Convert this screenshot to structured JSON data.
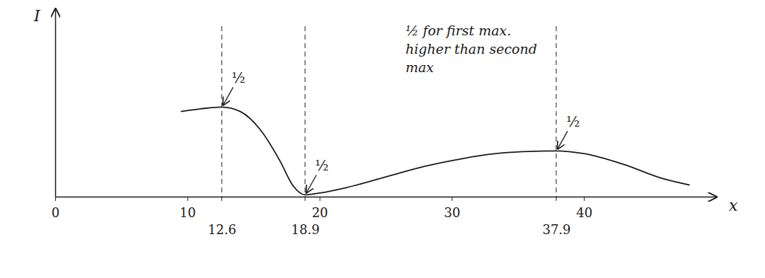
{
  "chart_data": {
    "type": "line",
    "x_label": "x",
    "y_label": "I",
    "x": [
      9.5,
      11,
      12.6,
      14,
      15.5,
      17,
      18,
      18.9,
      20,
      22,
      25,
      28,
      31,
      34,
      37.9,
      40,
      43,
      46,
      48
    ],
    "series": [
      {
        "color": "#1a1a1a",
        "line_style": "solid",
        "values": [
          0.95,
          0.98,
          1.0,
          0.95,
          0.75,
          0.4,
          0.12,
          0.02,
          0.04,
          0.1,
          0.22,
          0.34,
          0.43,
          0.49,
          0.51,
          0.48,
          0.36,
          0.2,
          0.13
        ]
      }
    ],
    "xlim": [
      0,
      50
    ],
    "ylim": [
      0,
      2.1
    ],
    "xticks": [
      0,
      10,
      20,
      30,
      40
    ],
    "yticks": [],
    "tick_labels": "x",
    "reference_lines": [
      12.6,
      18.9,
      37.9
    ],
    "annotations": [
      {
        "text": "½",
        "x": 12.6,
        "y": 1.0
      },
      {
        "text": "½",
        "x": 18.9,
        "y": 0.02
      },
      {
        "text": "½",
        "x": 37.9,
        "y": 0.51
      }
    ],
    "note": [
      "½ for first max.",
      "higher than second",
      "max"
    ]
  }
}
